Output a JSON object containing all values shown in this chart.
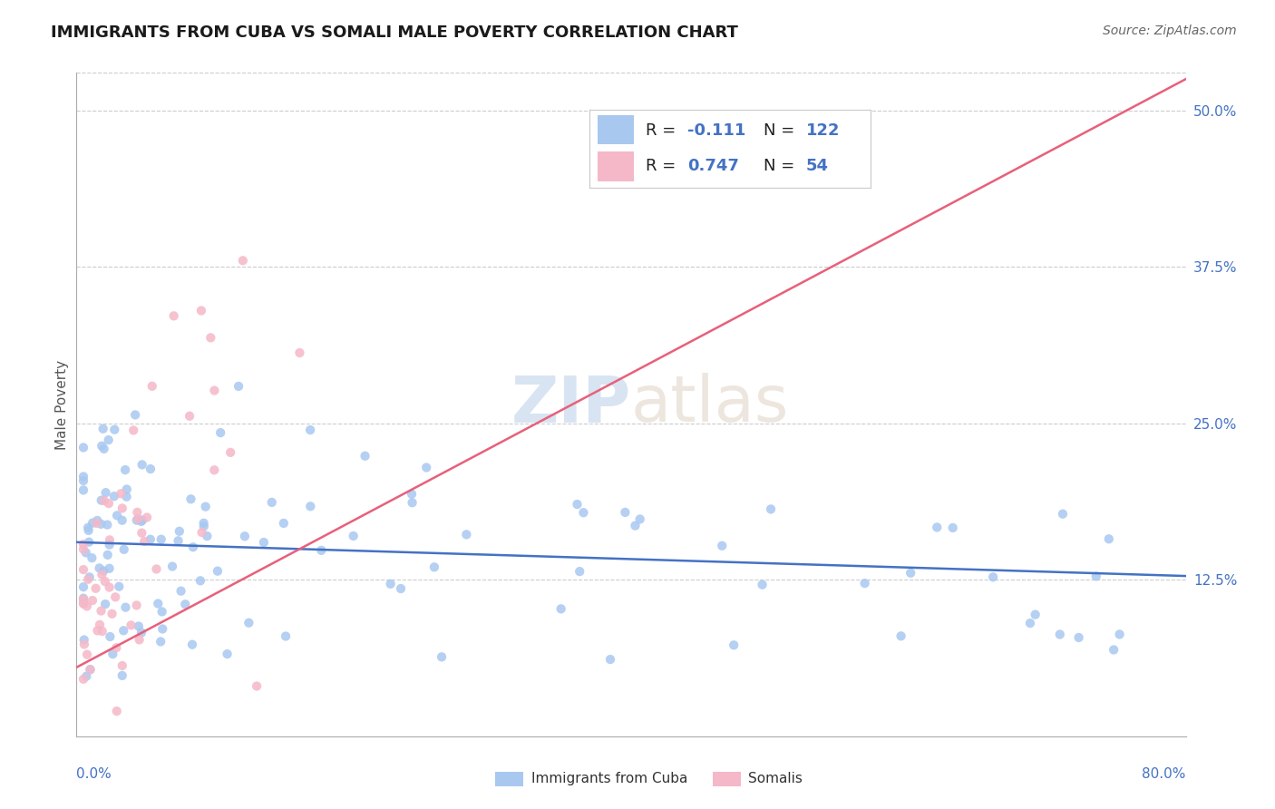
{
  "title": "IMMIGRANTS FROM CUBA VS SOMALI MALE POVERTY CORRELATION CHART",
  "source": "Source: ZipAtlas.com",
  "ylabel": "Male Poverty",
  "ytick_labels": [
    "12.5%",
    "25.0%",
    "37.5%",
    "50.0%"
  ],
  "ytick_values": [
    0.125,
    0.25,
    0.375,
    0.5
  ],
  "xlim": [
    0.0,
    0.8
  ],
  "ylim": [
    0.0,
    0.53
  ],
  "legend_r1": "-0.111",
  "legend_n1": "122",
  "legend_r2": "0.747",
  "legend_n2": "54",
  "color_cuba": "#a8c8f0",
  "color_somali": "#f5b8c8",
  "color_line_cuba": "#4472c4",
  "color_line_somali": "#e8607a",
  "color_tick_label": "#4472c4",
  "watermark_zip": "ZIP",
  "watermark_atlas": "atlas",
  "background_color": "#ffffff",
  "grid_color": "#cccccc",
  "legend_text_color": "#222222"
}
